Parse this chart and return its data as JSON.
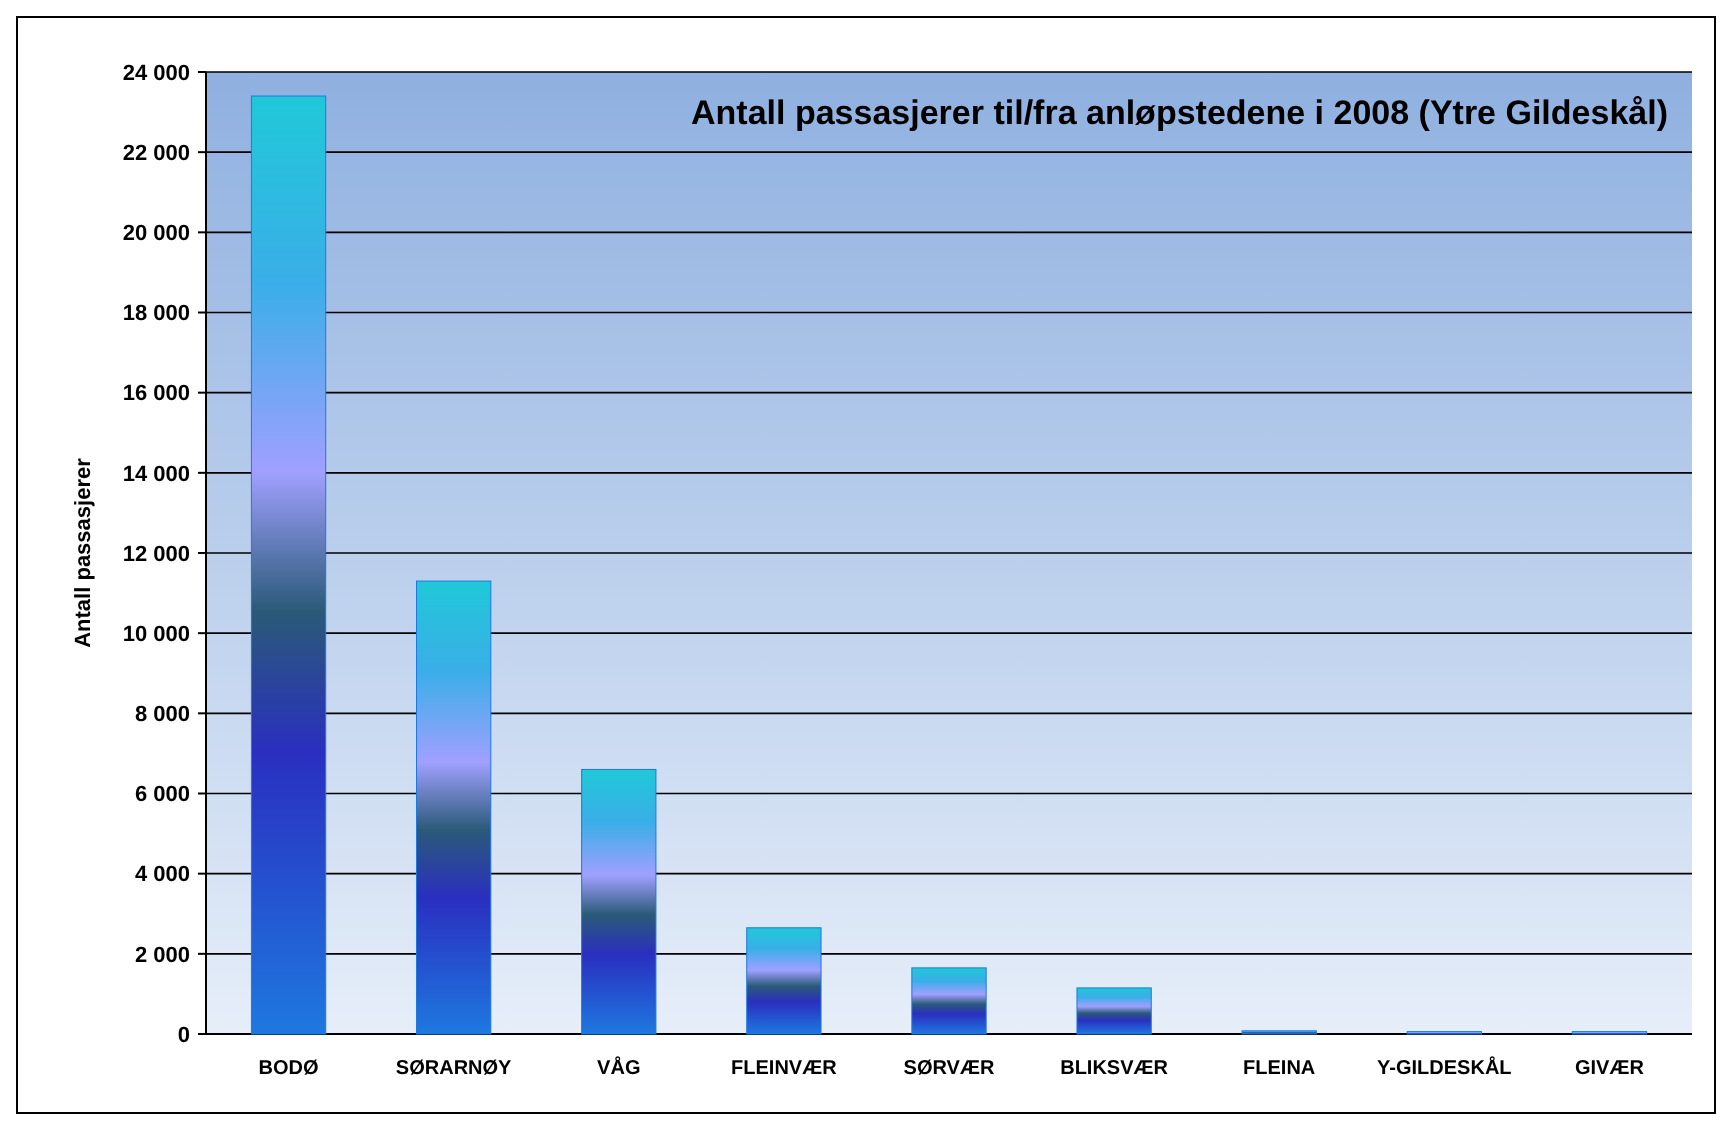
{
  "chart_data": {
    "type": "bar",
    "title": "Antall passasjerer til/fra anløpstedene i 2008 (Ytre Gildeskål)",
    "ylabel": "Antall passasjerer",
    "categories": [
      "BODØ",
      "SØRARNØY",
      "VÅG",
      "FLEINVÆR",
      "SØRVÆR",
      "BLIKSVÆR",
      "FLEINA",
      "Y-GILDESKÅL",
      "GIVÆR"
    ],
    "values": [
      23400,
      11300,
      6600,
      2650,
      1650,
      1150,
      80,
      60,
      60
    ],
    "color": "#1e78e0",
    "ylim": [
      0,
      24000
    ],
    "yticks": [
      0,
      {
        "value": 2000,
        "label": "2 000"
      },
      {
        "value": 4000,
        "label": "4 000"
      },
      {
        "value": 6000,
        "label": "6 000"
      },
      {
        "value": 8000,
        "label": "8 000"
      },
      {
        "value": 10000,
        "label": "10 000"
      },
      {
        "value": 12000,
        "label": "12 000"
      },
      {
        "value": 14000,
        "label": "14 000"
      },
      {
        "value": 16000,
        "label": "16 000"
      },
      {
        "value": 18000,
        "label": "18 000"
      },
      {
        "value": 20000,
        "label": "20 000"
      },
      {
        "value": 22000,
        "label": "22 000"
      },
      {
        "value": 24000,
        "label": "24 000"
      }
    ],
    "grid": "y"
  }
}
